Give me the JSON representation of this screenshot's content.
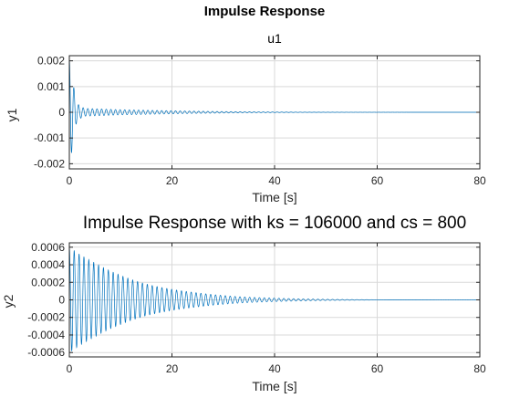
{
  "figure": {
    "title": "Impulse Response",
    "line_color": "#0072BD",
    "grid_color": "#d9d9d9",
    "axis_color": "#262626"
  },
  "chart_data": [
    {
      "type": "line",
      "title": "u1",
      "xlabel": "Time [s]",
      "ylabel": "y1",
      "xlim": [
        0,
        80
      ],
      "ylim": [
        -0.0022,
        0.0022
      ],
      "xticks": [
        0,
        20,
        40,
        60,
        80
      ],
      "xtick_labels": [
        "0",
        "20",
        "40",
        "60",
        "80"
      ],
      "yticks": [
        -0.002,
        -0.001,
        0,
        0.001,
        0.002
      ],
      "ytick_labels": [
        "-0.002",
        "-0.001",
        "0",
        "0.001",
        "0.002"
      ],
      "grid": true,
      "series": [
        {
          "decay_points": [
            [
              0,
              0.0021
            ],
            [
              0.3,
              0.0018
            ],
            [
              0.8,
              0.0011
            ],
            [
              1.5,
              0.00035
            ],
            [
              3,
              0.00015
            ],
            [
              6,
              0.00013
            ],
            [
              10,
              0.0001
            ],
            [
              15,
              8e-05
            ],
            [
              20,
              6e-05
            ],
            [
              30,
              3e-05
            ],
            [
              40,
              1.2e-05
            ],
            [
              50,
              4e-06
            ],
            [
              60,
              2e-06
            ],
            [
              80,
              5e-07
            ]
          ],
          "oscillation_period": 0.9
        }
      ]
    },
    {
      "type": "line",
      "title": "Impulse Response with ks = 106000 and cs = 800",
      "xlabel": "Time [s]",
      "ylabel": "y2",
      "xlim": [
        0,
        80
      ],
      "ylim": [
        -0.00065,
        0.00065
      ],
      "xticks": [
        0,
        20,
        40,
        60,
        80
      ],
      "xtick_labels": [
        "0",
        "20",
        "40",
        "60",
        "80"
      ],
      "yticks": [
        -0.0006,
        -0.0004,
        -0.0002,
        0,
        0.0002,
        0.0004,
        0.0006
      ],
      "ytick_labels": [
        "-0.0006",
        "-0.0004",
        "-0.0002",
        "0",
        "0.0002",
        "0.0004",
        "0.0006"
      ],
      "grid": true,
      "series": [
        {
          "decay_points": [
            [
              0,
              0.0006
            ],
            [
              2,
              0.00052
            ],
            [
              5,
              0.00042
            ],
            [
              10,
              0.00028
            ],
            [
              15,
              0.00018
            ],
            [
              20,
              0.00012
            ],
            [
              25,
              8e-05
            ],
            [
              30,
              5e-05
            ],
            [
              35,
              3e-05
            ],
            [
              40,
              2e-05
            ],
            [
              45,
              1.2e-05
            ],
            [
              50,
              7e-06
            ],
            [
              55,
              4e-06
            ],
            [
              60,
              2e-06
            ],
            [
              80,
              5e-07
            ]
          ],
          "oscillation_period": 0.95
        }
      ]
    }
  ]
}
